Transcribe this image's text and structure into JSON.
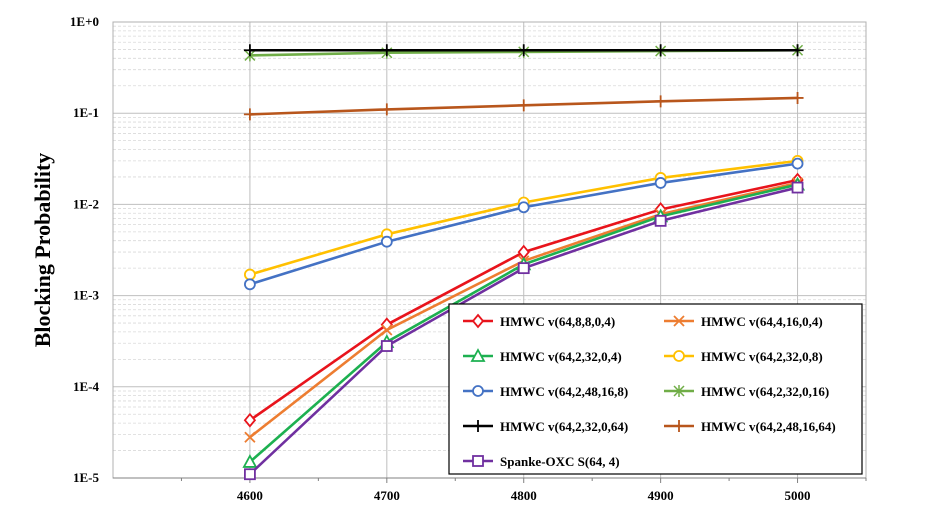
{
  "chart_data": {
    "type": "line",
    "ylabel": "Blocking Probability",
    "xlabel": "",
    "x": [
      4600,
      4700,
      4800,
      4900,
      5000
    ],
    "x_tick_labels": [
      "4600",
      "4700",
      "4800",
      "4900",
      "5000"
    ],
    "y_scale": "log",
    "ylim": [
      1e-05,
      1
    ],
    "y_tick_labels": [
      "1E-5",
      "1E-4",
      "1E-3",
      "1E-2",
      "1E-1",
      "1E+0"
    ],
    "grid": "major and minor horizontal, major vertical",
    "legend_position": "bottom-right",
    "series": [
      {
        "name": "HMWC v(64,8,8,0,4)",
        "color": "#e8141c",
        "marker": "diamond",
        "values": [
          4.3e-05,
          0.00048,
          0.003,
          0.0088,
          0.0185
        ]
      },
      {
        "name": "HMWC v(64,4,16,0,4)",
        "color": "#ed7d31",
        "marker": "x",
        "values": [
          2.8e-05,
          0.00042,
          0.0024,
          0.0078,
          0.0172
        ]
      },
      {
        "name": "HMWC v(64,2,32,0,4)",
        "color": "#1db050",
        "marker": "triangle",
        "values": [
          1.5e-05,
          0.00031,
          0.0022,
          0.0074,
          0.0165
        ]
      },
      {
        "name": "HMWC v(64,2,32,0,8)",
        "color": "#ffc000",
        "marker": "circle",
        "values": [
          0.0017,
          0.0047,
          0.0105,
          0.0195,
          0.03
        ]
      },
      {
        "name": "HMWC v(64,2,48,16,8)",
        "color": "#4472c4",
        "marker": "circle",
        "values": [
          0.00133,
          0.0039,
          0.0093,
          0.0172,
          0.028
        ]
      },
      {
        "name": "HMWC v(64,2,32,0,16)",
        "color": "#70ad47",
        "marker": "asterisk",
        "values": [
          0.43,
          0.46,
          0.47,
          0.48,
          0.49
        ]
      },
      {
        "name": "HMWC v(64,2,32,0,64)",
        "color": "#000000",
        "marker": "plus",
        "values": [
          0.49,
          0.49,
          0.49,
          0.49,
          0.49
        ]
      },
      {
        "name": "HMWC v(64,2,48,16,64)",
        "color": "#b8561c",
        "marker": "plus",
        "values": [
          0.097,
          0.11,
          0.122,
          0.135,
          0.147
        ]
      },
      {
        "name": "Spanke-OXC S(64, 4)",
        "color": "#7030a0",
        "marker": "square",
        "values": [
          1.1e-05,
          0.00028,
          0.002,
          0.0066,
          0.0153
        ]
      }
    ]
  }
}
